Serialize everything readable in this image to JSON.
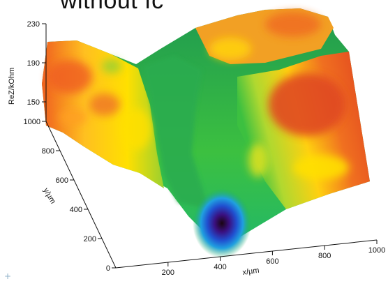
{
  "title": "without fc",
  "decor": {
    "plus_glyph": "+"
  },
  "chart_data": {
    "type": "surface3d",
    "z_axis": {
      "label": "ReZ/kOhm",
      "ticks": [
        150,
        190,
        230
      ],
      "range": [
        130,
        230
      ]
    },
    "y_axis": {
      "label": "y/µm",
      "ticks": [
        0,
        200,
        400,
        600,
        800,
        1000
      ],
      "range": [
        0,
        1000
      ]
    },
    "x_axis": {
      "label": "x/µm",
      "ticks": [
        200,
        400,
        600,
        800,
        1000
      ],
      "range": [
        0,
        1000
      ]
    },
    "colormap": [
      "#1a0510",
      "#3a1080",
      "#2050d0",
      "#20a0e0",
      "#20b060",
      "#3cc040",
      "#9ad030",
      "#ffe000",
      "#ffa020",
      "#f06020",
      "#e04020"
    ],
    "surface_features": {
      "baseline_level": 185,
      "minimum": {
        "x": 400,
        "y": 150,
        "z": 135
      },
      "valley_ridge": {
        "from": {
          "x": 380,
          "y": 900
        },
        "to": {
          "x": 420,
          "y": 250
        },
        "z": 165
      },
      "plateau_high": {
        "x": 780,
        "y": 700,
        "z": 215
      },
      "left_edge_high": {
        "x": 50,
        "y": 900,
        "z": 205
      }
    }
  }
}
